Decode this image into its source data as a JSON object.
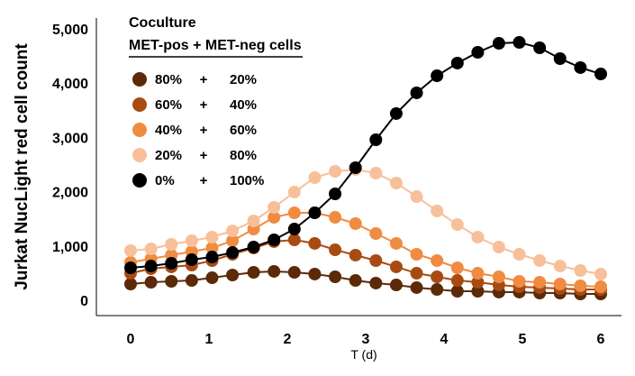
{
  "chart_data": {
    "type": "line",
    "title": "",
    "xlabel": "T (d)",
    "ylabel": "Jurkat NucLight red cell count",
    "xlim": [
      0,
      6
    ],
    "ylim": [
      0,
      5000
    ],
    "xticks": [
      "0",
      "1",
      "2",
      "3",
      "4",
      "5",
      "6"
    ],
    "yticks": [
      "0",
      "1,000",
      "2,000",
      "3,000",
      "4,000",
      "5,000"
    ],
    "grid": false,
    "legend": {
      "title": "Coculture",
      "subtitle": "MET-pos + MET-neg cells",
      "placement": "top-left"
    },
    "x": [
      0,
      0.26,
      0.52,
      0.78,
      1.04,
      1.3,
      1.57,
      1.83,
      2.09,
      2.35,
      2.61,
      2.87,
      3.13,
      3.39,
      3.65,
      3.91,
      4.17,
      4.43,
      4.7,
      4.96,
      5.22,
      5.48,
      5.74,
      6
    ],
    "series": [
      {
        "name": "80% + 20%",
        "pos": "80%",
        "plus": "+",
        "neg": "20%",
        "color": "#5c2a08",
        "values": [
          299,
          332,
          349,
          365,
          415,
          465,
          515,
          532,
          515,
          482,
          432,
          365,
          316,
          282,
          233,
          199,
          166,
          166,
          150,
          150,
          133,
          133,
          116,
          116
        ]
      },
      {
        "name": "60% + 40%",
        "pos": "60%",
        "plus": "+",
        "neg": "40%",
        "color": "#a84b12",
        "values": [
          498,
          581,
          615,
          648,
          731,
          847,
          963,
          1080,
          1113,
          1047,
          930,
          831,
          731,
          615,
          498,
          432,
          365,
          332,
          282,
          249,
          233,
          216,
          199,
          199
        ]
      },
      {
        "name": "40% + 60%",
        "pos": "40%",
        "plus": "+",
        "neg": "60%",
        "color": "#f08b42",
        "values": [
          698,
          764,
          831,
          897,
          963,
          1096,
          1312,
          1528,
          1611,
          1611,
          1528,
          1412,
          1229,
          1047,
          847,
          731,
          598,
          498,
          432,
          349,
          332,
          299,
          266,
          249
        ]
      },
      {
        "name": "20% + 80%",
        "pos": "20%",
        "plus": "+",
        "neg": "80%",
        "color": "#f7c09a",
        "values": [
          914,
          947,
          1030,
          1096,
          1163,
          1279,
          1462,
          1711,
          1993,
          2259,
          2375,
          2409,
          2342,
          2159,
          1910,
          1645,
          1395,
          1163,
          980,
          847,
          731,
          631,
          548,
          482
        ]
      },
      {
        "name": "0% + 100%",
        "pos": "0%",
        "plus": "+",
        "neg": "100%",
        "color": "#000000",
        "values": [
          598,
          631,
          681,
          748,
          797,
          880,
          980,
          1113,
          1312,
          1611,
          1960,
          2442,
          2957,
          3439,
          3821,
          4136,
          4369,
          4568,
          4734,
          4751,
          4651,
          4452,
          4286,
          4169
        ]
      }
    ]
  }
}
